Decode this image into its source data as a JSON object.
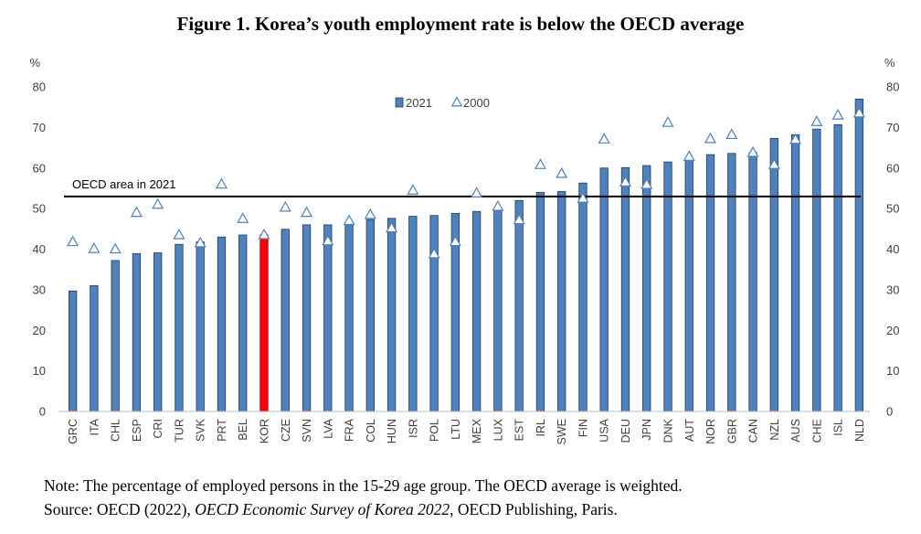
{
  "title": "Figure 1. Korea’s youth employment rate is below the OECD average",
  "note": {
    "line1": "Note: The percentage of employed persons in the 15-29 age group. The OECD average is weighted.",
    "source_prefix": "Source: OECD (2022), ",
    "source_title": "OECD Economic Survey of Korea 2022",
    "source_suffix": ", OECD Publishing, Paris."
  },
  "chart_data": {
    "type": "bar",
    "title": "Figure 1. Korea’s youth employment rate is below the OECD average",
    "ylabel": "%",
    "ylabel_right": "%",
    "ylim": [
      0,
      80
    ],
    "yticks": [
      0,
      10,
      20,
      30,
      40,
      50,
      60,
      70,
      80
    ],
    "categories": [
      "GRC",
      "ITA",
      "CHL",
      "ESP",
      "CRI",
      "TUR",
      "SVK",
      "PRT",
      "BEL",
      "KOR",
      "CZE",
      "SVN",
      "LVA",
      "FRA",
      "COL",
      "HUN",
      "ISR",
      "POL",
      "LTU",
      "MEX",
      "LUX",
      "EST",
      "IRL",
      "SWE",
      "FIN",
      "USA",
      "DEU",
      "JPN",
      "DNK",
      "AUT",
      "NOR",
      "GBR",
      "CAN",
      "NZL",
      "AUS",
      "CHE",
      "ISL",
      "NLD"
    ],
    "series": [
      {
        "name": "2021",
        "marker": "bar",
        "values": [
          29.7,
          31.0,
          37.2,
          38.9,
          39.1,
          41.2,
          41.8,
          43.0,
          43.5,
          43.5,
          44.9,
          46.0,
          46.0,
          46.3,
          47.3,
          47.6,
          48.1,
          48.3,
          48.8,
          49.3,
          49.7,
          52.0,
          54.0,
          54.2,
          56.3,
          60.0,
          60.1,
          60.6,
          61.5,
          62.1,
          63.3,
          63.6,
          63.8,
          67.3,
          68.2,
          69.6,
          70.7,
          77.0
        ]
      },
      {
        "name": "2000",
        "marker": "triangle",
        "values": [
          41.8,
          40.1,
          40.0,
          49.0,
          51.0,
          43.5,
          41.5,
          56.0,
          47.5,
          43.5,
          50.3,
          49.0,
          42.0,
          47.0,
          48.5,
          45.2,
          54.5,
          38.8,
          41.8,
          53.8,
          50.5,
          47.2,
          60.8,
          58.6,
          52.5,
          67.1,
          56.5,
          55.9,
          71.2,
          62.8,
          67.2,
          68.2,
          63.8,
          60.8,
          67.0,
          71.4,
          73.0,
          73.5
        ]
      }
    ],
    "highlight": {
      "category": "KOR",
      "color": "#ff0000"
    },
    "reference_line": {
      "label": "OECD area in 2021",
      "value": 53
    },
    "legend": {
      "position": "top-center",
      "labels": [
        "2021",
        "2000"
      ]
    },
    "grid": false
  },
  "colors": {
    "bar": "#4f81bd",
    "bar_edge": "#1f3b5a",
    "highlight": "#ff0000",
    "triangle": "#4f81bd",
    "axis": "#404040",
    "reference": "#000000"
  }
}
